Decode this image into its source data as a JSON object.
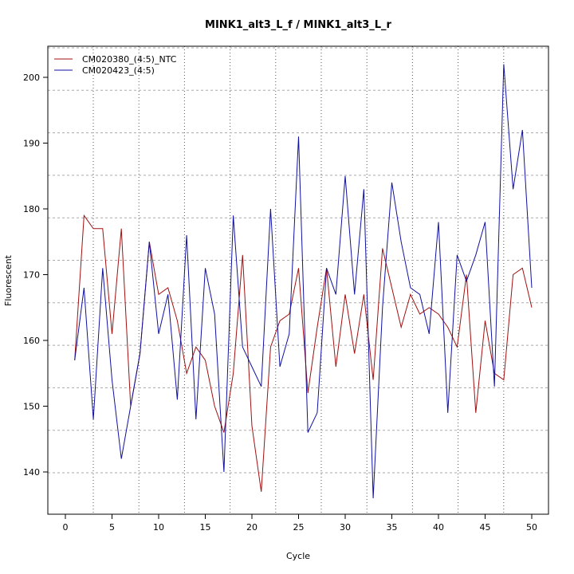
{
  "chart_data": {
    "type": "line",
    "title": "MINK1_alt3_L_f / MINK1_alt3_L_r",
    "xlabel": "Cycle",
    "ylabel": "Fluorescent",
    "xlim": [
      0,
      50
    ],
    "ylim": [
      140,
      200
    ],
    "x_ticks": [
      0,
      5,
      10,
      15,
      20,
      25,
      30,
      35,
      40,
      45,
      50
    ],
    "y_ticks": [
      140,
      150,
      160,
      170,
      180,
      190,
      200
    ],
    "grid": true,
    "legend_placement": "top-left",
    "x": [
      1,
      2,
      3,
      4,
      5,
      6,
      7,
      8,
      9,
      10,
      11,
      12,
      13,
      14,
      15,
      16,
      17,
      18,
      19,
      20,
      21,
      22,
      23,
      24,
      25,
      26,
      27,
      28,
      29,
      30,
      31,
      32,
      33,
      34,
      35,
      36,
      37,
      38,
      39,
      40,
      41,
      42,
      43,
      44,
      45,
      46,
      47,
      48,
      49,
      50
    ],
    "series": [
      {
        "name": "CM020380_(4:5)_NTC",
        "color": "#a01010",
        "values": [
          157,
          179,
          177,
          177,
          161,
          177,
          150,
          158,
          175,
          167,
          168,
          163,
          155,
          159,
          157,
          150,
          146,
          155,
          173,
          147,
          137,
          159,
          163,
          164,
          171,
          152,
          162,
          171,
          156,
          167,
          158,
          167,
          154,
          174,
          168,
          162,
          167,
          164,
          165,
          164,
          162,
          159,
          170,
          149,
          163,
          155,
          154,
          170,
          171,
          165
        ]
      },
      {
        "name": "CM020423_(4:5)",
        "color": "#1010a0",
        "values": [
          157,
          168,
          148,
          171,
          154,
          142,
          150,
          158,
          175,
          161,
          167,
          151,
          176,
          148,
          171,
          164,
          140,
          179,
          159,
          156,
          153,
          180,
          156,
          161,
          191,
          146,
          149,
          171,
          167,
          185,
          167,
          183,
          136,
          165,
          184,
          175,
          168,
          167,
          161,
          178,
          149,
          173,
          169,
          173,
          178,
          153,
          202,
          183,
          192,
          168
        ]
      }
    ]
  }
}
